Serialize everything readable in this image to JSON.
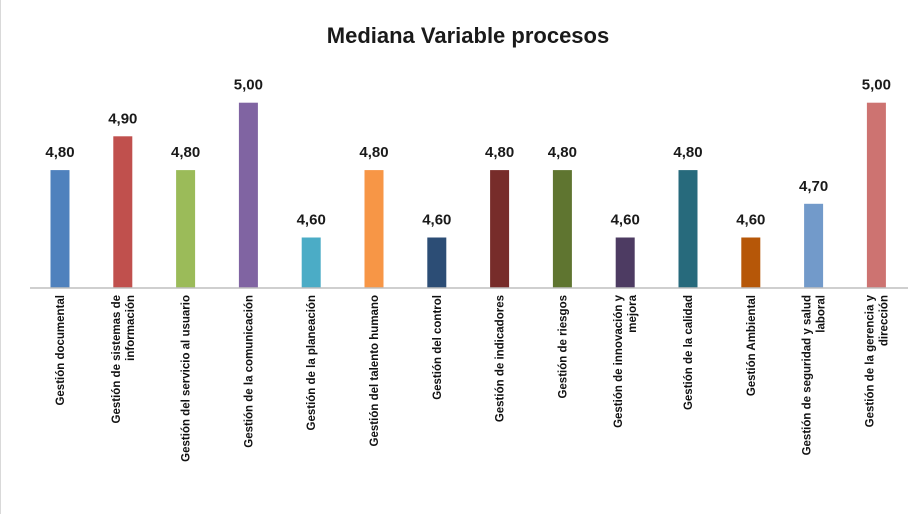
{
  "chart_data": {
    "type": "bar",
    "title": "Mediana  Variable procesos",
    "xlabel": "",
    "ylabel": "",
    "ylim": [
      4.45,
      5.0
    ],
    "grid": false,
    "legend": "none",
    "categories": [
      [
        "Gestión documental"
      ],
      [
        "Gestión de sistemas de",
        "información"
      ],
      [
        "Gestión del servicio al usuario"
      ],
      [
        "Gestión de la comunicación"
      ],
      [
        "Gestión de la planeación"
      ],
      [
        "Gestión del talento humano"
      ],
      [
        "Gestión del control"
      ],
      [
        "Gestión de indicadores"
      ],
      [
        "Gestión de riesgos"
      ],
      [
        "Gestión de innovación y",
        "mejora"
      ],
      [
        "Gestión de la calidad"
      ],
      [
        "Gestión Ambiental"
      ],
      [
        "Gestión de seguridad y salud",
        "laboral"
      ],
      [
        "Gestión de la gerencia y",
        "dirección"
      ]
    ],
    "values": [
      4.8,
      4.9,
      4.8,
      5.0,
      4.6,
      4.8,
      4.6,
      4.8,
      4.8,
      4.6,
      4.8,
      4.6,
      4.7,
      5.0
    ],
    "value_labels": [
      "4,80",
      "4,90",
      "4,80",
      "5,00",
      "4,60",
      "4,80",
      "4,60",
      "4,80",
      "4,80",
      "4,60",
      "4,80",
      "4,60",
      "4,70",
      "5,00"
    ],
    "colors": [
      "#4F81BD",
      "#C0504D",
      "#9BBB59",
      "#8064A2",
      "#4BACC6",
      "#F79646",
      "#2C4D75",
      "#772C2A",
      "#5F7530",
      "#4D3B62",
      "#276A7C",
      "#B65708",
      "#729ACA",
      "#CD7371"
    ]
  }
}
